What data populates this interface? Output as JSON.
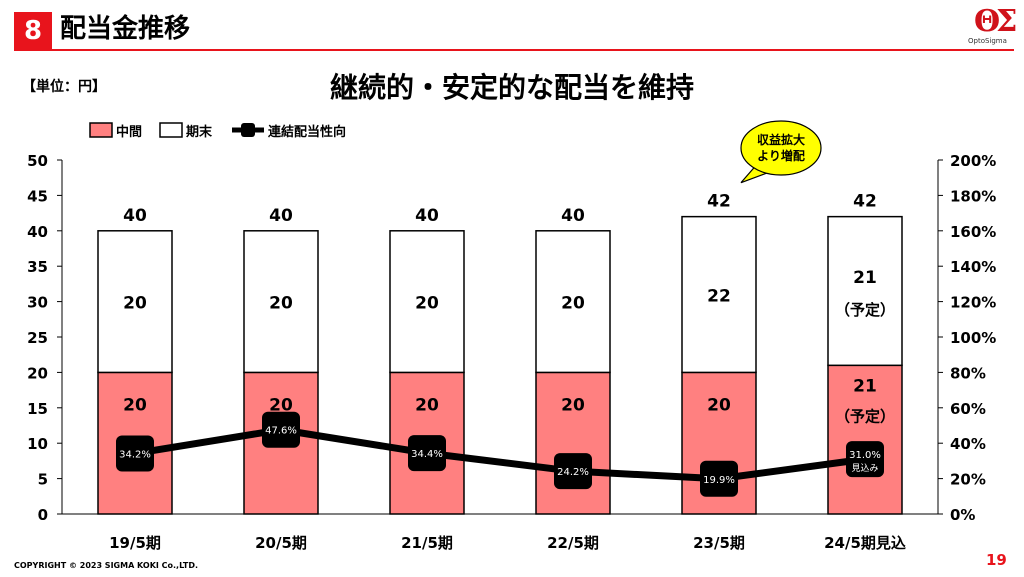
{
  "header": {
    "slide_number": "8",
    "section_title": "配当金推移",
    "logo_text": "OptoSigma"
  },
  "unit_label": "【単位：円】",
  "footer": {
    "copyright": "COPYRIGHT © 2023 SIGMA KOKI Co.,LTD.",
    "page_number": "19"
  },
  "colors": {
    "accent": "#e8141c",
    "interim_bar": "#ff8080",
    "year_end_bar": "#ffffff",
    "payout_line": "#000000",
    "callout": "#ffff00"
  },
  "chart_data": {
    "type": "bar",
    "stacked": true,
    "title": "継続的・安定的な配当を維持",
    "categories": [
      "19/5期",
      "20/5期",
      "21/5期",
      "22/5期",
      "23/5期",
      "24/5期見込"
    ],
    "series": [
      {
        "name": "中間",
        "values": [
          20,
          20,
          20,
          20,
          20,
          21
        ],
        "labels": [
          "20",
          "20",
          "20",
          "20",
          "20",
          "21"
        ],
        "label_notes": [
          "",
          "",
          "",
          "",
          "",
          "（予定）"
        ]
      },
      {
        "name": "期末",
        "values": [
          20,
          20,
          20,
          20,
          22,
          21
        ],
        "labels": [
          "20",
          "20",
          "20",
          "20",
          "22",
          "21"
        ],
        "label_notes": [
          "",
          "",
          "",
          "",
          "",
          "（予定）"
        ]
      }
    ],
    "totals": [
      "40",
      "40",
      "40",
      "40",
      "42",
      "42"
    ],
    "line_series": {
      "name": "連結配当性向",
      "axis": "right",
      "values": [
        34.2,
        47.6,
        34.4,
        24.2,
        19.9,
        31.0
      ],
      "labels": [
        "34.2%",
        "47.6%",
        "34.4%",
        "24.2%",
        "19.9%",
        "31.0%"
      ],
      "label_notes": [
        "",
        "",
        "",
        "",
        "",
        "見込み"
      ]
    },
    "y_left": {
      "min": 0,
      "max": 50,
      "ticks": [
        "0",
        "5",
        "10",
        "15",
        "20",
        "25",
        "30",
        "35",
        "40",
        "45",
        "50"
      ]
    },
    "y_right": {
      "min": 0,
      "max": 200,
      "ticks": [
        "0%",
        "20%",
        "40%",
        "60%",
        "80%",
        "100%",
        "120%",
        "140%",
        "160%",
        "180%",
        "200%"
      ]
    },
    "legend": {
      "position": "top-left"
    },
    "grid": false,
    "annotation": {
      "lines": [
        "収益拡大",
        "より増配"
      ],
      "target_category": "23/5期"
    }
  }
}
